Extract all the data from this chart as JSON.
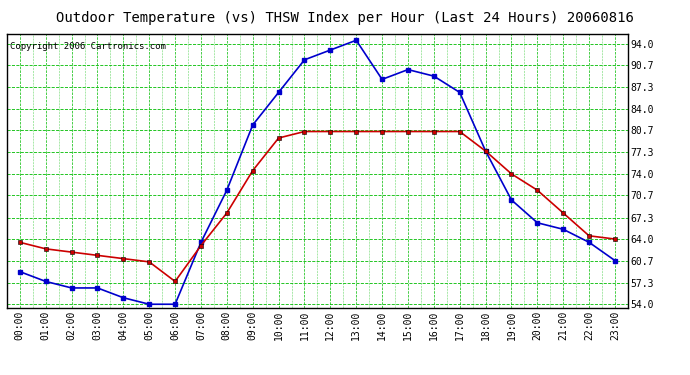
{
  "title": "Outdoor Temperature (vs) THSW Index per Hour (Last 24 Hours) 20060816",
  "copyright": "Copyright 2006 Cartronics.com",
  "hours": [
    0,
    1,
    2,
    3,
    4,
    5,
    6,
    7,
    8,
    9,
    10,
    11,
    12,
    13,
    14,
    15,
    16,
    17,
    18,
    19,
    20,
    21,
    22,
    23
  ],
  "blue_thsw": [
    59.0,
    57.5,
    56.5,
    56.5,
    55.0,
    54.0,
    54.0,
    63.5,
    71.5,
    81.5,
    86.5,
    91.5,
    93.0,
    94.5,
    88.5,
    90.0,
    89.0,
    86.5,
    77.5,
    70.0,
    66.5,
    65.5,
    63.5,
    60.7
  ],
  "red_temp": [
    63.5,
    62.5,
    62.0,
    61.5,
    61.0,
    60.5,
    57.5,
    63.0,
    68.0,
    74.5,
    79.5,
    80.5,
    80.5,
    80.5,
    80.5,
    80.5,
    80.5,
    80.5,
    77.5,
    74.0,
    71.5,
    68.0,
    64.5,
    64.0
  ],
  "blue_color": "#0000CC",
  "red_color": "#CC0000",
  "bg_color": "#FFFFFF",
  "grid_color": "#00BB00",
  "yticks": [
    54.0,
    57.3,
    60.7,
    64.0,
    67.3,
    70.7,
    74.0,
    77.3,
    80.7,
    84.0,
    87.3,
    90.7,
    94.0
  ],
  "ylim": [
    53.5,
    95.5
  ],
  "title_fontsize": 10,
  "tick_fontsize": 7,
  "copyright_fontsize": 6.5
}
